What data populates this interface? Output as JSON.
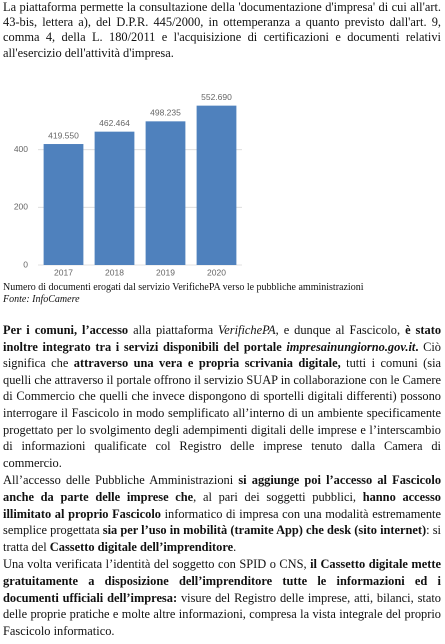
{
  "intro": "La piattaforma permette la consultazione della 'documentazione d'impresa' di cui all'art. 43-bis, lettera a), del D.P.R. 445/2000, in ottemperanza a quanto previsto dall'art. 9, comma 4, della L. 180/2011 e l'acquisizione di certificazioni e documenti relativi all'esercizio dell'attività d'impresa.",
  "chart_data": {
    "type": "bar",
    "categories": [
      "2017",
      "2018",
      "2019",
      "2020"
    ],
    "values": [
      419.55,
      462.464,
      498.235,
      552.69
    ],
    "value_labels": [
      "419.550",
      "462.464",
      "498.235",
      "552.690"
    ],
    "color": "#4f81bd",
    "ylim": [
      0,
      600
    ],
    "yticks": [
      0,
      200,
      400
    ],
    "grid": true
  },
  "caption": {
    "text": "Numero di documenti erogati dal servizio VerifichePA verso le pubbliche amministrazioni",
    "source": "Fonte: InfoCamere"
  },
  "paragraphs": [
    {
      "runs": [
        {
          "t": "Per i comuni, l’accesso",
          "b": true
        },
        {
          "t": " alla piattaforma "
        },
        {
          "t": "VerifichePA",
          "i": true
        },
        {
          "t": ", e dunque al Fascicolo, "
        },
        {
          "t": "è stato inoltre integrato tra i servizi disponibili del portale ",
          "b": true
        },
        {
          "t": "impresainungiorno.gov.it",
          "b": true,
          "i": true
        },
        {
          "t": ".",
          "b": true
        },
        {
          "t": " Ciò significa che "
        },
        {
          "t": "attraverso una vera e propria scrivania digitale,",
          "b": true
        },
        {
          "t": " tutti i comuni (sia quelli che attraverso il portale offrono il servizio SUAP in collaborazione con le Camere di Commercio che quelli che invece dispongono di sportelli digitali differenti) possono interrogare il Fascicolo in modo semplificato all’interno di un ambiente specificamente progettato per lo svolgimento degli adempimenti digitali delle imprese e l’interscambio di informazioni qualificate col Registro delle imprese tenuto dalla Camera di commercio."
        }
      ]
    },
    {
      "runs": [
        {
          "t": "All’accesso delle Pubbliche Amministrazioni "
        },
        {
          "t": "si aggiunge poi l’accesso al Fascicolo anche da parte delle imprese che",
          "b": true
        },
        {
          "t": ", al pari dei soggetti pubblici, "
        },
        {
          "t": "hanno accesso illimitato al proprio Fascicolo",
          "b": true
        },
        {
          "t": " informatico di impresa con una modalità estremamente semplice progettata "
        },
        {
          "t": "sia per l’uso in mobilità (tramite App) che desk (sito internet)",
          "b": true
        },
        {
          "t": ": si tratta del "
        },
        {
          "t": "Cassetto digitale dell’imprenditore",
          "b": true
        },
        {
          "t": "."
        }
      ]
    },
    {
      "runs": [
        {
          "t": "Una volta verificata l’identità del soggetto con SPID o CNS, "
        },
        {
          "t": "il Cassetto digitale mette gratuitamente a disposizione dell’imprenditore tutte le informazioni ed i documenti ufficiali dell’impresa:",
          "b": true
        },
        {
          "t": " visure del Registro delle imprese, atti, bilanci, stato delle proprie pratiche e molte altre informazioni, compresa la vista integrale del proprio Fascicolo informatico."
        }
      ]
    }
  ]
}
